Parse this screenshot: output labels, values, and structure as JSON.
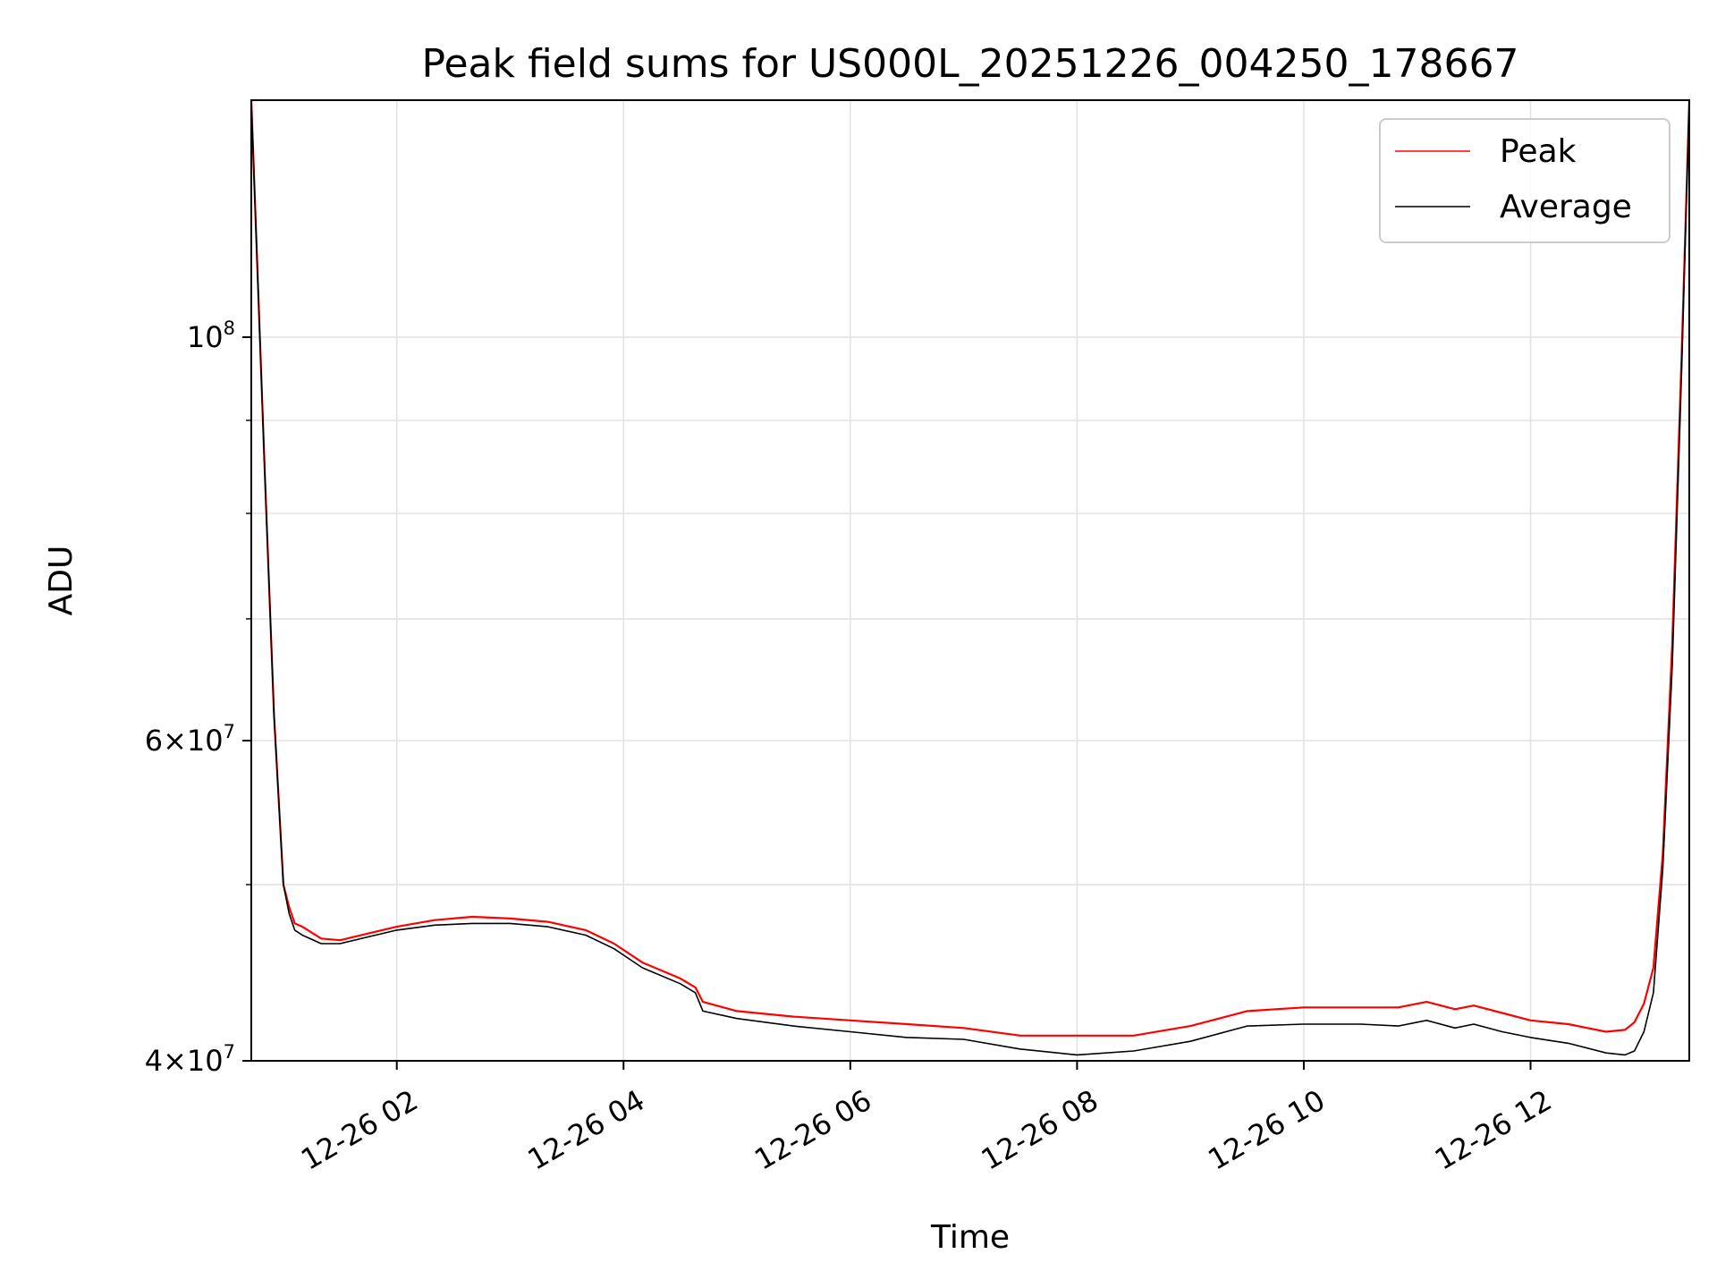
{
  "chart_data": {
    "type": "line",
    "title": "Peak field sums for US000L_20251226_004250_178667",
    "xlabel": "Time",
    "ylabel": "ADU",
    "y_scale": "log",
    "xlim": [
      "2025-12-26 00:43",
      "2025-12-26 13:24"
    ],
    "ylim": [
      40000000,
      135000000
    ],
    "grid": true,
    "legend": "upper right",
    "x_ticks": [
      {
        "value": "2025-12-26 02:00",
        "label": "12-26 02"
      },
      {
        "value": "2025-12-26 04:00",
        "label": "12-26 04"
      },
      {
        "value": "2025-12-26 06:00",
        "label": "12-26 06"
      },
      {
        "value": "2025-12-26 08:00",
        "label": "12-26 08"
      },
      {
        "value": "2025-12-26 10:00",
        "label": "12-26 10"
      },
      {
        "value": "2025-12-26 12:00",
        "label": "12-26 12"
      }
    ],
    "y_ticks": [
      {
        "value": 100000000,
        "base": "10",
        "exp": "8",
        "coef": ""
      },
      {
        "value": 60000000,
        "base": "10",
        "exp": "7",
        "coef": "6"
      },
      {
        "value": 40000000,
        "base": "10",
        "exp": "7",
        "coef": "4"
      }
    ],
    "y_minor_ticks": [
      50000000,
      70000000,
      80000000,
      90000000
    ],
    "times_symbol": "×",
    "x": [
      "2025-12-26 00:43",
      "2025-12-26 00:50",
      "2025-12-26 00:55",
      "2025-12-26 01:00",
      "2025-12-26 01:03",
      "2025-12-26 01:06",
      "2025-12-26 01:10",
      "2025-12-26 01:20",
      "2025-12-26 01:30",
      "2025-12-26 01:45",
      "2025-12-26 02:00",
      "2025-12-26 02:20",
      "2025-12-26 02:40",
      "2025-12-26 03:00",
      "2025-12-26 03:20",
      "2025-12-26 03:40",
      "2025-12-26 03:55",
      "2025-12-26 04:10",
      "2025-12-26 04:30",
      "2025-12-26 04:38",
      "2025-12-26 04:42",
      "2025-12-26 05:00",
      "2025-12-26 05:30",
      "2025-12-26 06:00",
      "2025-12-26 06:30",
      "2025-12-26 07:00",
      "2025-12-26 07:30",
      "2025-12-26 08:00",
      "2025-12-26 08:30",
      "2025-12-26 09:00",
      "2025-12-26 09:30",
      "2025-12-26 10:00",
      "2025-12-26 10:30",
      "2025-12-26 10:50",
      "2025-12-26 11:05",
      "2025-12-26 11:20",
      "2025-12-26 11:30",
      "2025-12-26 11:45",
      "2025-12-26 12:00",
      "2025-12-26 12:20",
      "2025-12-26 12:40",
      "2025-12-26 12:50",
      "2025-12-26 12:55",
      "2025-12-26 13:00",
      "2025-12-26 13:05",
      "2025-12-26 13:10",
      "2025-12-26 13:15",
      "2025-12-26 13:20",
      "2025-12-26 13:24"
    ],
    "series": [
      {
        "name": "Peak",
        "color": "#ff0000",
        "values": [
          135000000,
          85000000,
          62000000,
          50000000,
          48600000,
          47600000,
          47400000,
          46700000,
          46600000,
          47000000,
          47400000,
          47800000,
          48000000,
          47900000,
          47700000,
          47200000,
          46400000,
          45300000,
          44400000,
          43900000,
          43100000,
          42600000,
          42300000,
          42100000,
          41900000,
          41700000,
          41300000,
          41300000,
          41300000,
          41800000,
          42600000,
          42800000,
          42800000,
          42800000,
          43100000,
          42700000,
          42900000,
          42500000,
          42100000,
          41900000,
          41500000,
          41600000,
          42000000,
          43000000,
          45000000,
          52000000,
          68000000,
          98000000,
          135000000
        ]
      },
      {
        "name": "Average",
        "color": "#000000",
        "values": [
          135000000,
          85000000,
          62000000,
          50000000,
          48200000,
          47200000,
          46900000,
          46400000,
          46400000,
          46800000,
          47200000,
          47500000,
          47600000,
          47600000,
          47400000,
          46900000,
          46100000,
          45000000,
          44100000,
          43600000,
          42600000,
          42200000,
          41800000,
          41500000,
          41200000,
          41100000,
          40600000,
          40300000,
          40500000,
          41000000,
          41800000,
          41900000,
          41900000,
          41800000,
          42100000,
          41700000,
          41900000,
          41500000,
          41200000,
          40900000,
          40400000,
          40300000,
          40500000,
          41500000,
          43600000,
          51000000,
          66000000,
          96000000,
          135000000
        ]
      }
    ]
  }
}
